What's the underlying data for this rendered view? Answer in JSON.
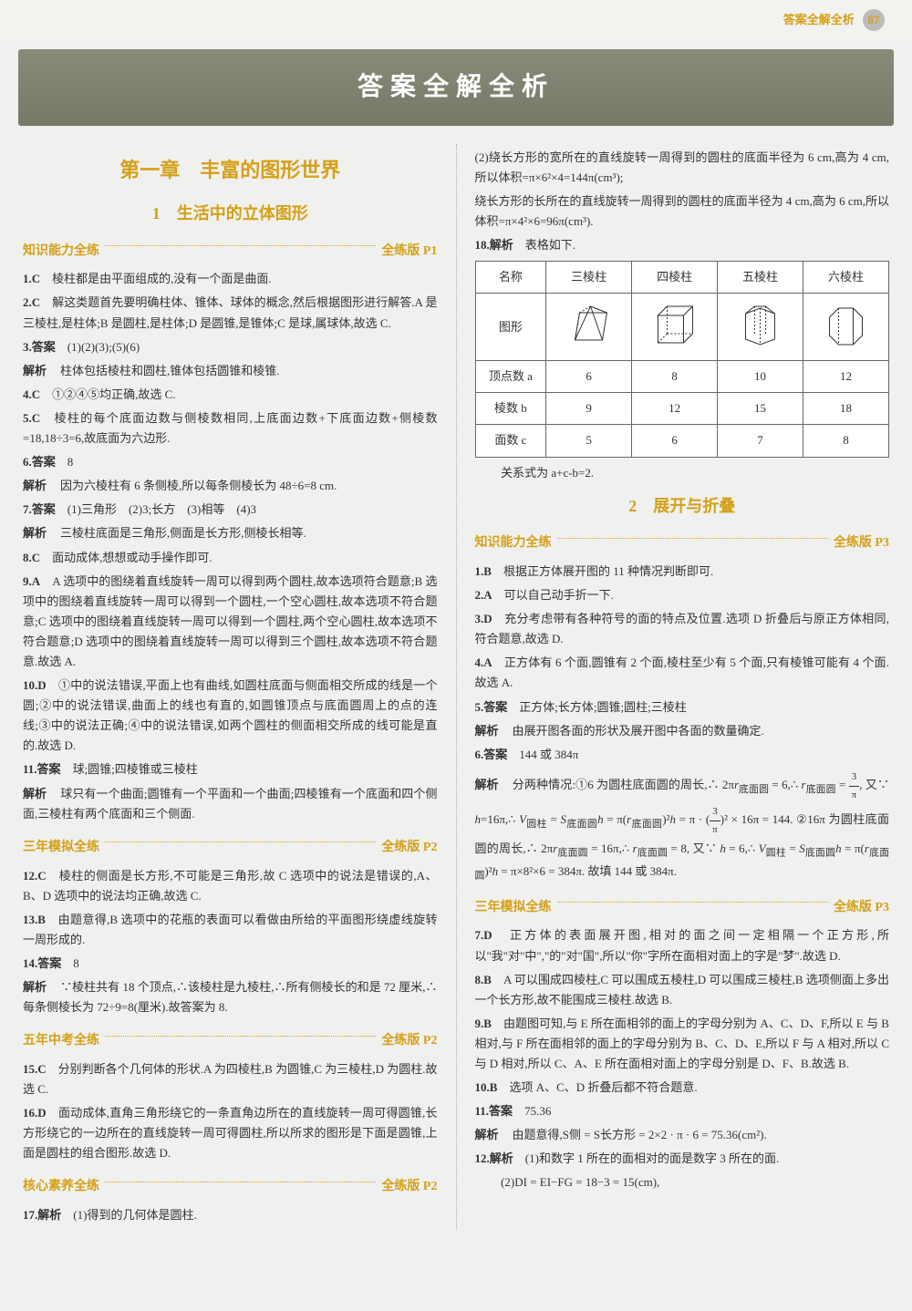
{
  "header": {
    "label": "答案全解全析",
    "pageNum": "87"
  },
  "banner": "答案全解全析",
  "left": {
    "chapter": "第一章　丰富的图形世界",
    "section1": "1　生活中的立体图形",
    "bar1": {
      "label": "知识能力全练",
      "ref": "全练版 P1"
    },
    "items1": [
      {
        "n": "1.C",
        "t": "棱柱都是由平面组成的,没有一个面是曲面."
      },
      {
        "n": "2.C",
        "t": "解这类题首先要明确柱体、锥体、球体的概念,然后根据图形进行解答.A 是三棱柱,是柱体;B 是圆柱,是柱体;D 是圆锥,是锥体;C 是球,属球体,故选 C."
      },
      {
        "n": "3.答案",
        "t": "(1)(2)(3);(5)(6)"
      },
      {
        "n": "",
        "tag": "解析",
        "t": "柱体包括棱柱和圆柱,锥体包括圆锥和棱锥."
      },
      {
        "n": "4.C",
        "t": "①②④⑤均正确,故选 C."
      },
      {
        "n": "5.C",
        "t": "棱柱的每个底面边数与侧棱数相同,上底面边数+下底面边数+侧棱数=18,18÷3=6,故底面为六边形."
      },
      {
        "n": "6.答案",
        "t": "8"
      },
      {
        "n": "",
        "tag": "解析",
        "t": "因为六棱柱有 6 条侧棱,所以每条侧棱长为 48÷6=8 cm."
      },
      {
        "n": "7.答案",
        "t": "(1)三角形　(2)3;长方　(3)相等　(4)3"
      },
      {
        "n": "",
        "tag": "解析",
        "t": "三棱柱底面是三角形,侧面是长方形,侧棱长相等."
      },
      {
        "n": "8.C",
        "t": "面动成体,想想或动手操作即可."
      },
      {
        "n": "9.A",
        "t": "A 选项中的图绕着直线旋转一周可以得到两个圆柱,故本选项符合题意;B 选项中的图绕着直线旋转一周可以得到一个圆柱,一个空心圆柱,故本选项不符合题意;C 选项中的图绕着直线旋转一周可以得到一个圆柱,两个空心圆柱,故本选项不符合题意;D 选项中的图绕着直线旋转一周可以得到三个圆柱,故本选项不符合题意.故选 A."
      },
      {
        "n": "10.D",
        "t": "①中的说法错误,平面上也有曲线,如圆柱底面与侧面相交所成的线是一个圆;②中的说法错误,曲面上的线也有直的,如圆锥顶点与底面圆周上的点的连线;③中的说法正确;④中的说法错误,如两个圆柱的侧面相交所成的线可能是直的.故选 D."
      },
      {
        "n": "11.答案",
        "t": "球;圆锥;四棱锥或三棱柱"
      },
      {
        "n": "",
        "tag": "解析",
        "t": "球只有一个曲面;圆锥有一个平面和一个曲面;四棱锥有一个底面和四个侧面,三棱柱有两个底面和三个侧面."
      }
    ],
    "bar2": {
      "label": "三年模拟全练",
      "ref": "全练版 P2"
    },
    "items2": [
      {
        "n": "12.C",
        "t": "棱柱的侧面是长方形,不可能是三角形,故 C 选项中的说法是错误的,A、B、D 选项中的说法均正确,故选 C."
      },
      {
        "n": "13.B",
        "t": "由题意得,B 选项中的花瓶的表面可以看做由所给的平面图形绕虚线旋转一周形成的."
      },
      {
        "n": "14.答案",
        "t": "8"
      },
      {
        "n": "",
        "tag": "解析",
        "t": "∵棱柱共有 18 个顶点,∴该棱柱是九棱柱,∴所有侧棱长的和是 72 厘米,∴每条侧棱长为 72÷9=8(厘米).故答案为 8."
      }
    ],
    "bar3": {
      "label": "五年中考全练",
      "ref": "全练版 P2"
    },
    "items3": [
      {
        "n": "15.C",
        "t": "分别判断各个几何体的形状.A 为四棱柱,B 为圆锥,C 为三棱柱,D 为圆柱.故选 C."
      },
      {
        "n": "16.D",
        "t": "面动成体,直角三角形绕它的一条直角边所在的直线旋转一周可得圆锥,长方形绕它的一边所在的直线旋转一周可得圆柱,所以所求的图形是下面是圆锥,上面是圆柱的组合图形.故选 D."
      }
    ],
    "bar4": {
      "label": "核心素养全练",
      "ref": "全练版 P2"
    },
    "items4": [
      {
        "n": "17.解析",
        "t": "(1)得到的几何体是圆柱."
      }
    ]
  },
  "right": {
    "topItems": [
      {
        "t": "(2)绕长方形的宽所在的直线旋转一周得到的圆柱的底面半径为 6 cm,高为 4 cm,所以体积=π×6²×4=144π(cm³);"
      },
      {
        "t": "绕长方形的长所在的直线旋转一周得到的圆柱的底面半径为 4 cm,高为 6 cm,所以体积=π×4²×6=96π(cm³)."
      }
    ],
    "item18label": "18.解析",
    "item18text": "表格如下.",
    "table": {
      "headers": [
        "名称",
        "三棱柱",
        "四棱柱",
        "五棱柱",
        "六棱柱"
      ],
      "shapeRow": "图形",
      "rows": [
        {
          "label": "顶点数 a",
          "vals": [
            "6",
            "8",
            "10",
            "12"
          ]
        },
        {
          "label": "棱数 b",
          "vals": [
            "9",
            "12",
            "15",
            "18"
          ]
        },
        {
          "label": "面数 c",
          "vals": [
            "5",
            "6",
            "7",
            "8"
          ]
        }
      ]
    },
    "relation": "关系式为 a+c-b=2.",
    "section2": "2　展开与折叠",
    "bar1": {
      "label": "知识能力全练",
      "ref": "全练版 P3"
    },
    "items1": [
      {
        "n": "1.B",
        "t": "根据正方体展开图的 11 种情况判断即可."
      },
      {
        "n": "2.A",
        "t": "可以自己动手折一下."
      },
      {
        "n": "3.D",
        "t": "充分考虑带有各种符号的面的特点及位置.选项 D 折叠后与原正方体相同,符合题意,故选 D."
      },
      {
        "n": "4.A",
        "t": "正方体有 6 个面,圆锥有 2 个面,棱柱至少有 5 个面,只有棱锥可能有 4 个面.故选 A."
      },
      {
        "n": "5.答案",
        "t": "正方体;长方体;圆锥;圆柱;三棱柱"
      },
      {
        "n": "",
        "tag": "解析",
        "t": "由展开图各面的形状及展开图中各面的数量确定."
      },
      {
        "n": "6.答案",
        "t": "144 或 384π"
      }
    ],
    "item6analysis": "解析　分两种情况:①6 为圆柱底面圆的周长,∴2πr底面圆 = 6,∴ r底面圆 = 3/π, 又∵ h=16π,∴ V圆柱 = S底面圆 h = π(r底面圆)² h = π · (3/π)² × 16π = 144. ②16π 为圆柱底面圆的周长,∴ 2πr底面圆 = 16π,∴ r底面圆 = 8, 又∵ h = 6,∴ V圆柱 = S底面圆 h = π(r底面圆)² h = π×8²×6 = 384π. 故填 144 或 384π.",
    "bar2": {
      "label": "三年模拟全练",
      "ref": "全练版 P3"
    },
    "items2": [
      {
        "n": "7.D",
        "t": "正方体的表面展开图,相对的面之间一定相隔一个正方形,所以\"我\"对\"中\",\"的\"对\"国\",所以\"你\"字所在面相对面上的字是\"梦\".故选 D."
      },
      {
        "n": "8.B",
        "t": "A 可以围成四棱柱,C 可以围成五棱柱,D 可以围成三棱柱,B 选项侧面上多出一个长方形,故不能围成三棱柱.故选 B."
      },
      {
        "n": "9.B",
        "t": "由题图可知,与 E 所在面相邻的面上的字母分别为 A、C、D、F,所以 E 与 B 相对,与 F 所在面相邻的面上的字母分别为 B、C、D、E,所以 F 与 A 相对,所以 C 与 D 相对,所以 C、A、E 所在面相对面上的字母分别是 D、F、B.故选 B."
      },
      {
        "n": "10.B",
        "t": "选项 A、C、D 折叠后都不符合题意."
      },
      {
        "n": "11.答案",
        "t": "75.36"
      },
      {
        "n": "",
        "tag": "解析",
        "t": "由题意得,S侧 = S长方形 = 2×2 · π · 6 = 75.36(cm²)."
      },
      {
        "n": "12.解析",
        "t": "(1)和数字 1 所在的面相对的面是数字 3 所在的面."
      },
      {
        "n": "",
        "t": "(2)DI = EI−FG = 18−3 = 15(cm),"
      }
    ]
  }
}
